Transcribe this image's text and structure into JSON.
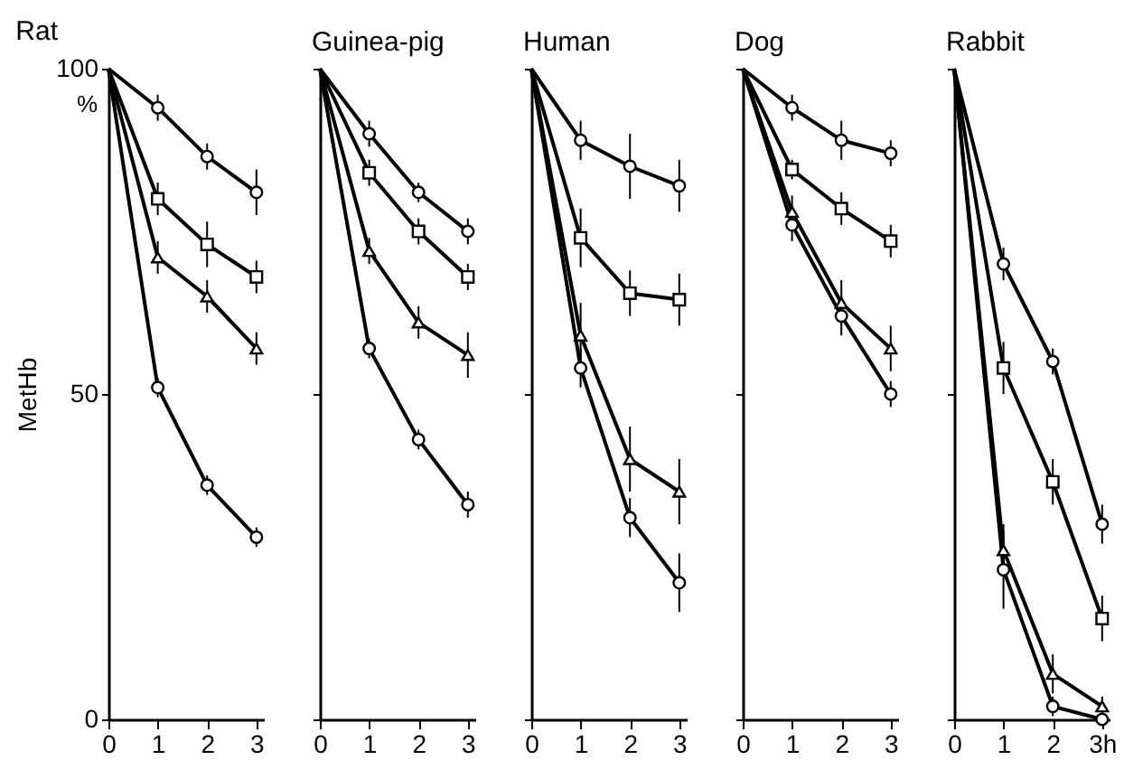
{
  "chart_data": [
    {
      "type": "line",
      "title": "Rat",
      "ylabel": "MetHb",
      "annotations": [
        "%"
      ],
      "xlim": [
        0,
        3.15
      ],
      "xticks": [
        0,
        1,
        2,
        3
      ],
      "ylim": [
        0,
        100
      ],
      "yticks": [
        0,
        50,
        100
      ],
      "series": [
        {
          "color": "#000000",
          "marker": "circle",
          "x": [
            0,
            1,
            2,
            3
          ],
          "values": [
            100,
            94,
            86.5,
            81
          ],
          "errors": [
            null,
            2,
            2,
            3.5
          ]
        },
        {
          "color": "#000000",
          "marker": "square",
          "x": [
            0,
            1,
            2,
            3
          ],
          "values": [
            100,
            80,
            73,
            68
          ],
          "errors": [
            null,
            2.5,
            3.5,
            2.5
          ]
        },
        {
          "color": "#000000",
          "marker": "triangle",
          "x": [
            0,
            1,
            2,
            3
          ],
          "values": [
            100,
            71,
            65,
            57
          ],
          "errors": [
            null,
            2.5,
            2.5,
            2.5
          ]
        },
        {
          "color": "#000000",
          "marker": "circle",
          "x": [
            0,
            1,
            2,
            3
          ],
          "values": [
            100,
            51,
            36,
            28
          ],
          "errors": [
            null,
            1.5,
            1.5,
            1.5
          ]
        }
      ]
    },
    {
      "type": "line",
      "title": "Guinea-pig",
      "xlim": [
        0,
        3.15
      ],
      "xticks": [
        0,
        1,
        2,
        3
      ],
      "ylim": [
        0,
        100
      ],
      "yticks": [
        0,
        50,
        100
      ],
      "tick_labels": "x",
      "series": [
        {
          "color": "#000000",
          "marker": "circle",
          "x": [
            0,
            1,
            2,
            3
          ],
          "values": [
            100,
            90,
            81,
            75
          ],
          "errors": [
            null,
            2,
            1.5,
            2
          ]
        },
        {
          "color": "#000000",
          "marker": "square",
          "x": [
            0,
            1,
            2,
            3
          ],
          "values": [
            100,
            84,
            75,
            68
          ],
          "errors": [
            null,
            2,
            2,
            2
          ]
        },
        {
          "color": "#000000",
          "marker": "triangle",
          "x": [
            0,
            1,
            2,
            3
          ],
          "values": [
            100,
            72,
            61,
            56
          ],
          "errors": [
            null,
            2,
            2.5,
            3.5
          ]
        },
        {
          "color": "#000000",
          "marker": "circle",
          "x": [
            0,
            1,
            2,
            3
          ],
          "values": [
            100,
            57,
            43,
            33
          ],
          "errors": [
            null,
            1.5,
            1.5,
            2
          ]
        }
      ]
    },
    {
      "type": "line",
      "title": "Human",
      "xlim": [
        0,
        3.15
      ],
      "xticks": [
        0,
        1,
        2,
        3
      ],
      "ylim": [
        0,
        100
      ],
      "yticks": [
        0,
        50,
        100
      ],
      "tick_labels": "x",
      "series": [
        {
          "color": "#000000",
          "marker": "circle",
          "x": [
            0,
            1,
            2,
            3
          ],
          "values": [
            100,
            89,
            85,
            82
          ],
          "errors": [
            null,
            3,
            5,
            4
          ]
        },
        {
          "color": "#000000",
          "marker": "square",
          "x": [
            0,
            1,
            2,
            3
          ],
          "values": [
            100,
            74,
            65.5,
            64.5
          ],
          "errors": [
            null,
            4.5,
            3.5,
            4
          ]
        },
        {
          "color": "#000000",
          "marker": "triangle",
          "x": [
            0,
            1,
            2,
            3
          ],
          "values": [
            100,
            59,
            40,
            35
          ],
          "errors": [
            null,
            5,
            5,
            5
          ]
        },
        {
          "color": "#000000",
          "marker": "circle",
          "x": [
            0,
            1,
            2,
            3
          ],
          "values": [
            100,
            54,
            31,
            21
          ],
          "errors": [
            null,
            3,
            3,
            4.5
          ]
        }
      ]
    },
    {
      "type": "line",
      "title": "Dog",
      "xlim": [
        0,
        3.15
      ],
      "xticks": [
        0,
        1,
        2,
        3
      ],
      "ylim": [
        0,
        100
      ],
      "yticks": [
        0,
        50,
        100
      ],
      "tick_labels": "x",
      "series": [
        {
          "color": "#000000",
          "marker": "circle",
          "x": [
            0,
            1,
            2,
            3
          ],
          "values": [
            100,
            94,
            89,
            87
          ],
          "errors": [
            null,
            2,
            3,
            2
          ]
        },
        {
          "color": "#000000",
          "marker": "square",
          "x": [
            0,
            1,
            2,
            3
          ],
          "values": [
            100,
            84.5,
            78.5,
            73.5
          ],
          "errors": [
            null,
            1.5,
            2.5,
            2.5
          ]
        },
        {
          "color": "#000000",
          "marker": "triangle",
          "x": [
            0,
            1,
            2,
            3
          ],
          "values": [
            100,
            78,
            64,
            57
          ],
          "errors": [
            null,
            2.5,
            3.5,
            3.5
          ]
        },
        {
          "color": "#000000",
          "marker": "circle",
          "x": [
            0,
            1,
            2,
            3
          ],
          "values": [
            100,
            76,
            62,
            50
          ],
          "errors": [
            null,
            2.5,
            3,
            2
          ]
        }
      ]
    },
    {
      "type": "line",
      "title": "Rabbit",
      "xlim": [
        0,
        3.15
      ],
      "xticks": [
        0,
        1,
        2,
        {
          "value": 3,
          "label": "3h"
        }
      ],
      "ylim": [
        0,
        100
      ],
      "yticks": [
        0,
        50,
        100
      ],
      "tick_labels": "x",
      "series": [
        {
          "color": "#000000",
          "marker": "circle",
          "x": [
            0,
            1,
            2,
            3
          ],
          "values": [
            100,
            70,
            55,
            30
          ],
          "errors": [
            null,
            2.5,
            2,
            3
          ]
        },
        {
          "color": "#000000",
          "marker": "square",
          "x": [
            0,
            1,
            2,
            3
          ],
          "values": [
            100,
            54,
            36.5,
            15.5
          ],
          "errors": [
            null,
            4,
            3.5,
            3.5
          ]
        },
        {
          "color": "#000000",
          "marker": "triangle",
          "x": [
            0,
            1,
            2,
            3
          ],
          "values": [
            100,
            26,
            7,
            2
          ],
          "errors": [
            null,
            4,
            3,
            1.5
          ]
        },
        {
          "color": "#000000",
          "marker": "circle",
          "x": [
            0,
            1,
            2,
            3
          ],
          "values": [
            100,
            23,
            2,
            0
          ],
          "errors": [
            null,
            6,
            1.5,
            0.5
          ]
        }
      ]
    }
  ]
}
